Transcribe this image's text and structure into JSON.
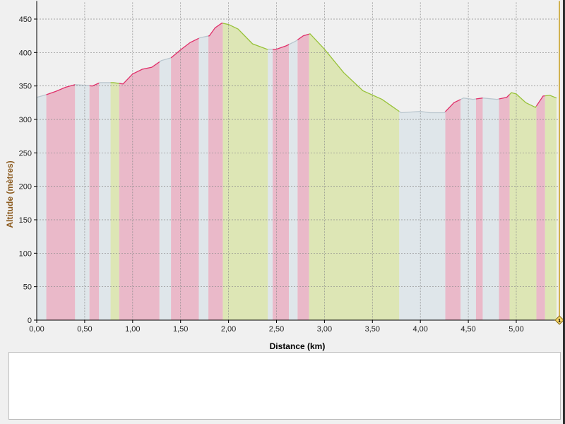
{
  "chart_data": {
    "type": "area",
    "xlabel": "Distance (km)",
    "ylabel": "Altitude (mètres)",
    "xlim": [
      0,
      5.45
    ],
    "ylim": [
      0,
      475
    ],
    "x_ticks": [
      "0,00",
      "0,50",
      "1,00",
      "1,50",
      "2,00",
      "2,50",
      "3,00",
      "3,50",
      "4,00",
      "4,50",
      "5,00"
    ],
    "x_tick_values": [
      0,
      0.5,
      1.0,
      1.5,
      2.0,
      2.5,
      3.0,
      3.5,
      4.0,
      4.5,
      5.0
    ],
    "y_ticks": [
      "0",
      "50",
      "100",
      "150",
      "200",
      "250",
      "300",
      "350",
      "400",
      "450"
    ],
    "y_tick_values": [
      0,
      50,
      100,
      150,
      200,
      250,
      300,
      350,
      400,
      450
    ],
    "grid": true,
    "profile": [
      [
        0.0,
        333
      ],
      [
        0.1,
        337
      ],
      [
        0.2,
        342
      ],
      [
        0.3,
        348
      ],
      [
        0.4,
        352
      ],
      [
        0.5,
        351
      ],
      [
        0.58,
        350
      ],
      [
        0.66,
        355
      ],
      [
        0.8,
        355
      ],
      [
        0.9,
        353
      ],
      [
        1.0,
        368
      ],
      [
        1.1,
        375
      ],
      [
        1.2,
        378
      ],
      [
        1.3,
        388
      ],
      [
        1.4,
        392
      ],
      [
        1.5,
        404
      ],
      [
        1.6,
        415
      ],
      [
        1.7,
        422
      ],
      [
        1.8,
        425
      ],
      [
        1.86,
        437
      ],
      [
        1.93,
        444
      ],
      [
        2.0,
        442
      ],
      [
        2.1,
        435
      ],
      [
        2.25,
        413
      ],
      [
        2.4,
        405
      ],
      [
        2.5,
        405
      ],
      [
        2.6,
        410
      ],
      [
        2.7,
        417
      ],
      [
        2.78,
        425
      ],
      [
        2.85,
        428
      ],
      [
        3.0,
        405
      ],
      [
        3.2,
        370
      ],
      [
        3.4,
        343
      ],
      [
        3.6,
        330
      ],
      [
        3.7,
        320
      ],
      [
        3.8,
        310
      ],
      [
        4.0,
        312
      ],
      [
        4.1,
        310
      ],
      [
        4.25,
        310
      ],
      [
        4.35,
        325
      ],
      [
        4.45,
        332
      ],
      [
        4.55,
        330
      ],
      [
        4.65,
        332
      ],
      [
        4.8,
        330
      ],
      [
        4.9,
        333
      ],
      [
        4.95,
        340
      ],
      [
        5.0,
        338
      ],
      [
        5.1,
        325
      ],
      [
        5.2,
        318
      ],
      [
        5.28,
        335
      ],
      [
        5.35,
        336
      ],
      [
        5.42,
        332
      ]
    ],
    "segments": [
      {
        "from": 0.0,
        "to": 0.1,
        "slope": "flat"
      },
      {
        "from": 0.1,
        "to": 0.4,
        "slope": "up"
      },
      {
        "from": 0.4,
        "to": 0.55,
        "slope": "flat"
      },
      {
        "from": 0.55,
        "to": 0.65,
        "slope": "up"
      },
      {
        "from": 0.65,
        "to": 0.77,
        "slope": "flat"
      },
      {
        "from": 0.77,
        "to": 0.86,
        "slope": "down"
      },
      {
        "from": 0.86,
        "to": 1.28,
        "slope": "up"
      },
      {
        "from": 1.28,
        "to": 1.4,
        "slope": "flat"
      },
      {
        "from": 1.4,
        "to": 1.69,
        "slope": "up"
      },
      {
        "from": 1.69,
        "to": 1.79,
        "slope": "flat"
      },
      {
        "from": 1.79,
        "to": 1.94,
        "slope": "up"
      },
      {
        "from": 1.94,
        "to": 2.41,
        "slope": "down"
      },
      {
        "from": 2.41,
        "to": 2.46,
        "slope": "flat"
      },
      {
        "from": 2.46,
        "to": 2.63,
        "slope": "up"
      },
      {
        "from": 2.63,
        "to": 2.72,
        "slope": "flat"
      },
      {
        "from": 2.72,
        "to": 2.84,
        "slope": "up"
      },
      {
        "from": 2.84,
        "to": 3.78,
        "slope": "down"
      },
      {
        "from": 3.78,
        "to": 4.26,
        "slope": "flat"
      },
      {
        "from": 4.26,
        "to": 4.42,
        "slope": "up"
      },
      {
        "from": 4.42,
        "to": 4.58,
        "slope": "flat"
      },
      {
        "from": 4.58,
        "to": 4.65,
        "slope": "up"
      },
      {
        "from": 4.65,
        "to": 4.82,
        "slope": "flat"
      },
      {
        "from": 4.82,
        "to": 4.93,
        "slope": "up"
      },
      {
        "from": 4.93,
        "to": 5.21,
        "slope": "down"
      },
      {
        "from": 5.21,
        "to": 5.3,
        "slope": "up"
      },
      {
        "from": 5.3,
        "to": 5.42,
        "slope": "down"
      }
    ],
    "marker_label": "1",
    "marker_x": 5.45
  },
  "colors": {
    "up": "#eab9c9",
    "down": "#dde6b5",
    "flat": "#dfe6ea",
    "line_up": "#e0306a",
    "line_down": "#98c23a",
    "line_flat": "#b9c6ce",
    "axis_title": "#8b5a1e",
    "marker": "#c9a227"
  }
}
